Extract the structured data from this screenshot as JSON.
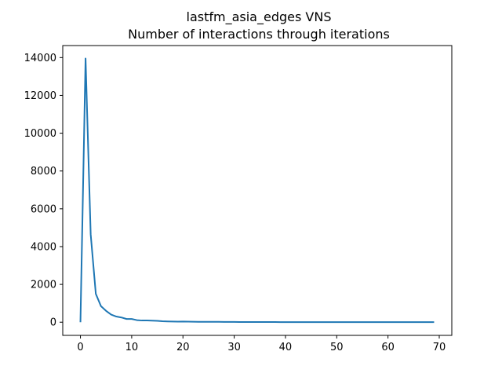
{
  "chart_data": {
    "type": "line",
    "title": "lastfm_asia_edges VNS",
    "subtitle": "Number of interactions through iterations",
    "xlabel": "",
    "ylabel": "",
    "xlim": [
      -3.45,
      72.45
    ],
    "ylim": [
      -697,
      14637
    ],
    "grid": false,
    "x_ticks": [
      0,
      10,
      20,
      30,
      40,
      50,
      60,
      70
    ],
    "y_ticks": [
      0,
      2000,
      4000,
      6000,
      8000,
      10000,
      12000,
      14000
    ],
    "series": [
      {
        "color": "#1f77b4",
        "x": [
          0,
          1,
          2,
          3,
          4,
          5,
          6,
          7,
          8,
          9,
          10,
          11,
          12,
          13,
          14,
          15,
          16,
          17,
          18,
          19,
          20,
          21,
          22,
          23,
          24,
          25,
          26,
          27,
          28,
          29,
          30,
          31,
          32,
          33,
          34,
          35,
          36,
          37,
          38,
          39,
          40,
          41,
          42,
          43,
          44,
          45,
          46,
          47,
          48,
          49,
          50,
          51,
          52,
          53,
          54,
          55,
          56,
          57,
          58,
          59,
          60,
          61,
          62,
          63,
          64,
          65,
          66,
          67,
          68,
          69
        ],
        "y": [
          0,
          13950,
          4650,
          1500,
          850,
          600,
          400,
          300,
          250,
          170,
          170,
          110,
          90,
          90,
          80,
          70,
          50,
          40,
          35,
          30,
          35,
          30,
          25,
          22,
          20,
          20,
          18,
          18,
          16,
          15,
          15,
          12,
          10,
          8,
          8,
          8,
          8,
          7,
          7,
          6,
          6,
          6,
          6,
          5,
          5,
          5,
          5,
          5,
          5,
          5,
          5,
          5,
          4,
          4,
          4,
          4,
          4,
          4,
          4,
          4,
          4,
          4,
          4,
          4,
          4,
          4,
          4,
          4,
          4,
          4
        ]
      }
    ]
  }
}
